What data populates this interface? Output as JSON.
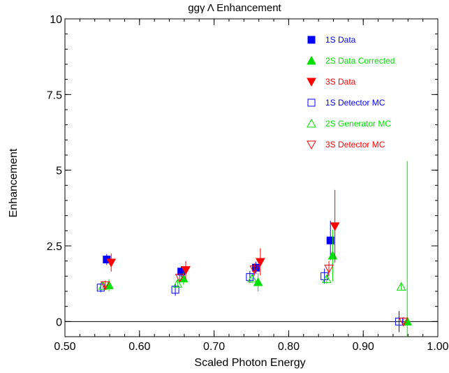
{
  "chart_data": {
    "type": "scatter",
    "title": "ggγ Λ Enhancement",
    "xlabel": "Scaled Photon Energy",
    "ylabel": "Enhancement",
    "xlim": [
      0.5,
      1.0
    ],
    "ylim": [
      -0.5,
      10
    ],
    "x_ticks": [
      0.5,
      0.6,
      0.7,
      0.8,
      0.9,
      1.0
    ],
    "x_tick_labels": [
      "0.50",
      "0.60",
      "0.70",
      "0.80",
      "0.90",
      "1.00"
    ],
    "y_ticks": [
      0,
      2.5,
      5,
      7.5,
      10
    ],
    "y_tick_labels": [
      "0",
      "2.5",
      "5",
      "7.5",
      "10"
    ],
    "reference_line_y": 0,
    "legend_position": "top-right",
    "series": [
      {
        "name": "1S Data",
        "color": "#0000ff",
        "marker": "filled-square",
        "points": [
          {
            "x": 0.556,
            "y": 2.05,
            "yerr": 0.18
          },
          {
            "x": 0.656,
            "y": 1.65,
            "yerr": 0.18
          },
          {
            "x": 0.756,
            "y": 1.78,
            "yerr": 0.2
          },
          {
            "x": 0.856,
            "y": 2.68,
            "yerr": 0.65
          }
        ]
      },
      {
        "name": "2S Data Corrected",
        "color": "#00e000",
        "marker": "filled-triangle-up",
        "points": [
          {
            "x": 0.559,
            "y": 1.2,
            "yerr": 0.2
          },
          {
            "x": 0.659,
            "y": 1.42,
            "yerr": 0.2
          },
          {
            "x": 0.759,
            "y": 1.3,
            "yerr": 0.3
          },
          {
            "x": 0.859,
            "y": 2.18,
            "yerr": 0.85
          },
          {
            "x": 0.959,
            "y": 0.0,
            "yerr": 5.3
          }
        ]
      },
      {
        "name": "3S Data",
        "color": "#ff0000",
        "marker": "filled-triangle-down",
        "points": [
          {
            "x": 0.562,
            "y": 1.95,
            "yerr": 0.3
          },
          {
            "x": 0.662,
            "y": 1.7,
            "yerr": 0.3
          },
          {
            "x": 0.762,
            "y": 1.97,
            "yerr": 0.45
          },
          {
            "x": 0.862,
            "y": 3.15,
            "yerr": 1.2
          }
        ]
      },
      {
        "name": "1S Detector MC",
        "color": "#0000ff",
        "marker": "open-square",
        "points": [
          {
            "x": 0.548,
            "y": 1.12,
            "yerr": 0.15
          },
          {
            "x": 0.648,
            "y": 1.05,
            "yerr": 0.2
          },
          {
            "x": 0.748,
            "y": 1.47,
            "yerr": 0.2
          },
          {
            "x": 0.848,
            "y": 1.5,
            "yerr": 0.25
          },
          {
            "x": 0.948,
            "y": 0.0,
            "yerr": 0.35
          }
        ]
      },
      {
        "name": "2S Generator MC",
        "color": "#00e000",
        "marker": "open-triangle-up",
        "points": [
          {
            "x": 0.551,
            "y": 1.18,
            "yerr": 0.12
          },
          {
            "x": 0.651,
            "y": 1.25,
            "yerr": 0.12
          },
          {
            "x": 0.751,
            "y": 1.42,
            "yerr": 0.15
          },
          {
            "x": 0.851,
            "y": 1.4,
            "yerr": 0.15
          },
          {
            "x": 0.951,
            "y": 1.15,
            "yerr": 0.1
          }
        ]
      },
      {
        "name": "3S Detector MC",
        "color": "#ff0000",
        "marker": "open-triangle-down",
        "points": [
          {
            "x": 0.554,
            "y": 1.2,
            "yerr": 0.15
          },
          {
            "x": 0.654,
            "y": 1.45,
            "yerr": 0.15
          },
          {
            "x": 0.754,
            "y": 1.72,
            "yerr": 0.2
          },
          {
            "x": 0.854,
            "y": 1.75,
            "yerr": 0.25
          },
          {
            "x": 0.954,
            "y": 0.0,
            "yerr": 0.15
          }
        ]
      }
    ]
  }
}
